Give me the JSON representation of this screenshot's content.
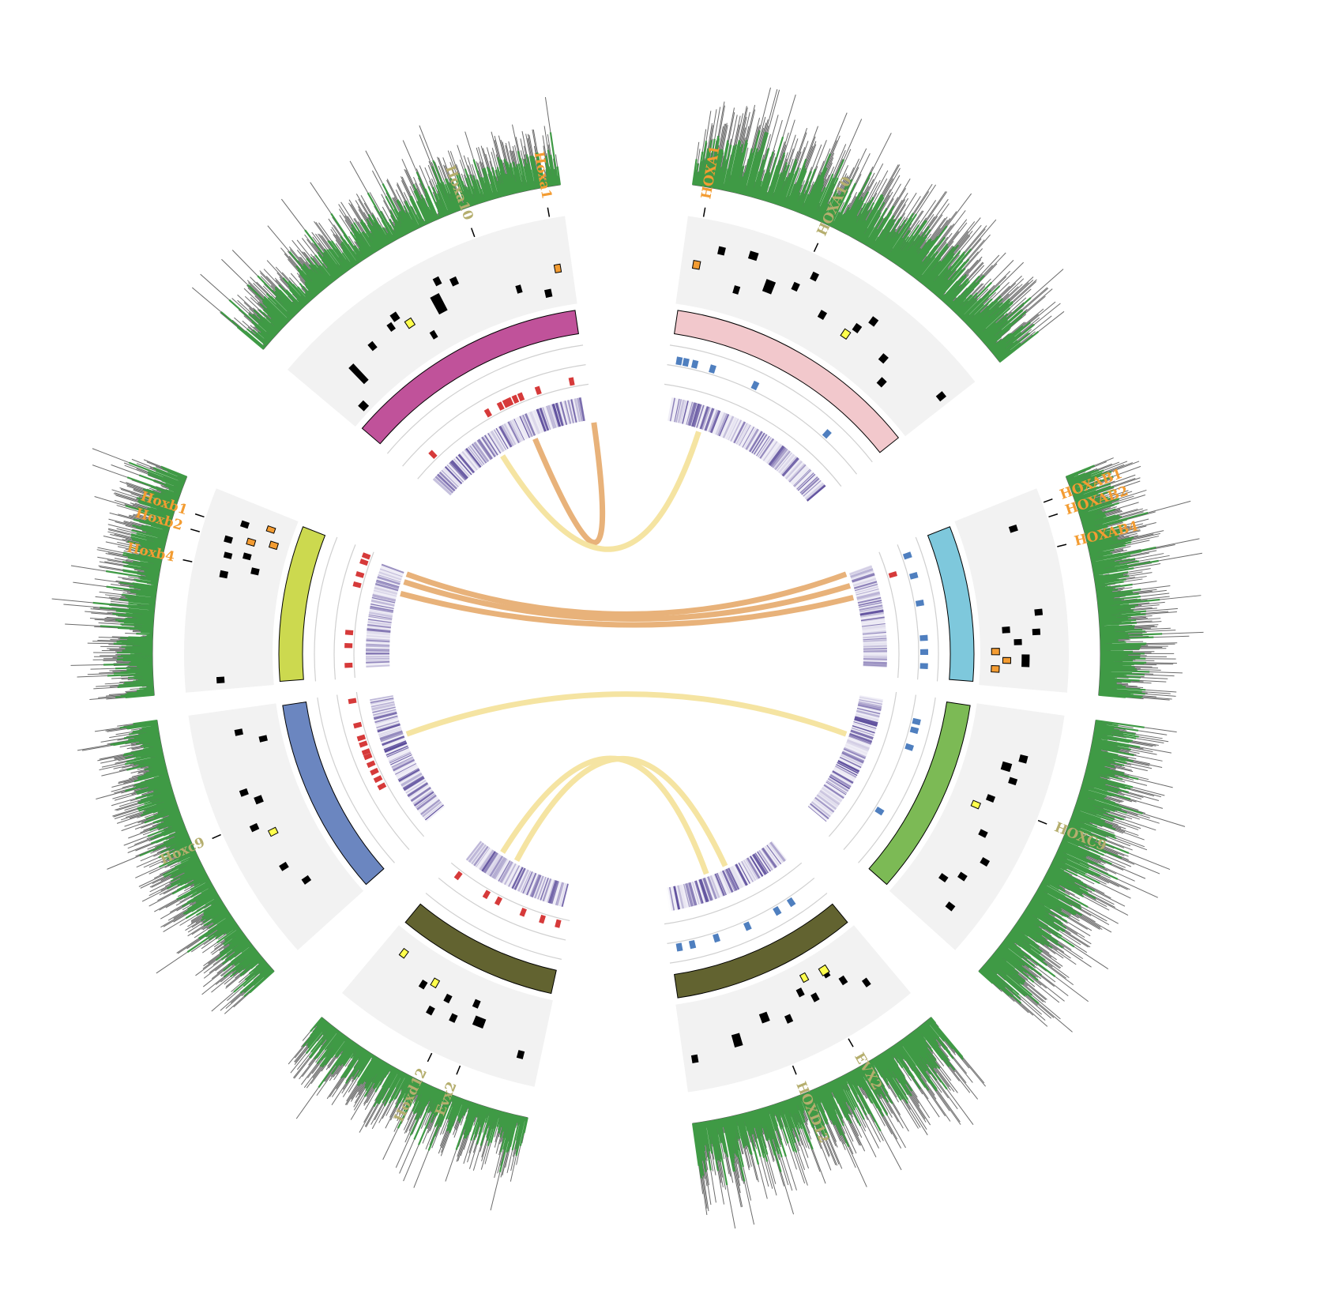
{
  "colors": {
    "track_bg": "#f2f2f2",
    "orange": "#f39c32",
    "olive_text": "#b5ae6e",
    "gene_black": "#000000",
    "yellow_box": "#ffff4d",
    "red_mark": "#d63a3a",
    "blue_mark": "#4f7fbf",
    "purple": "#5a4a9a",
    "green_hist": "#3f9a45",
    "grey_hist": "#6b6b6b",
    "link_orange": "#e8b27a",
    "link_yellow": "#f5e4a2",
    "line_grey": "#d0d0d0"
  },
  "segments": [
    {
      "id": "mouse-hoxa",
      "a0": -50,
      "a1": -8,
      "band": "#c0529a",
      "labels": [
        {
          "text": "Hoxa10",
          "angle": -20,
          "color": "olive"
        },
        {
          "text": "Hoxa1",
          "angle": -10,
          "color": "orange"
        }
      ],
      "genes": [
        [
          0.08,
          0.95,
          0.3,
          0.05
        ],
        [
          0.15,
          0.7,
          0.24,
          0.14
        ],
        [
          0.25,
          0.45,
          0.22,
          0.04
        ],
        [
          0.34,
          0.4,
          0.2,
          0.03
        ],
        [
          0.37,
          0.32,
          0.25,
          0.05
        ],
        [
          0.45,
          0.8,
          0.2,
          0.05
        ],
        [
          0.52,
          0.55,
          0.35,
          0.12
        ],
        [
          0.55,
          0.2,
          0.22,
          0.03
        ],
        [
          0.6,
          0.3,
          0.24,
          0.04
        ],
        [
          0.8,
          0.7,
          0.2,
          0.05
        ],
        [
          0.9,
          0.85,
          0.26,
          0.04
        ]
      ],
      "yellow": [
        [
          0.4,
          0.5,
          0.26,
          0.04
        ]
      ],
      "orangebox": [
        [
          0.95,
          0.55,
          0.22,
          0.02
        ]
      ],
      "redmarks": [
        0.14,
        0.48,
        0.55,
        0.58,
        0.6,
        0.63,
        0.66,
        0.75,
        0.92
      ],
      "purpledensity": 0.55,
      "hist": 0.55,
      "histside": "out"
    },
    {
      "id": "human-hoxa",
      "a0": 8,
      "a1": 52,
      "band": "#f2c8cc",
      "labels": [
        {
          "text": "HOXA1",
          "angle": 10,
          "color": "orange"
        },
        {
          "text": "HOXA10",
          "angle": 25,
          "color": "olive"
        }
      ],
      "genes": [
        [
          0.12,
          0.25,
          0.24,
          0.05
        ],
        [
          0.2,
          0.7,
          0.22,
          0.04
        ],
        [
          0.22,
          0.2,
          0.3,
          0.05
        ],
        [
          0.3,
          0.55,
          0.35,
          0.08
        ],
        [
          0.38,
          0.38,
          0.22,
          0.03
        ],
        [
          0.42,
          0.15,
          0.22,
          0.04
        ],
        [
          0.5,
          0.55,
          0.24,
          0.04
        ],
        [
          0.62,
          0.45,
          0.24,
          0.04
        ],
        [
          0.65,
          0.25,
          0.24,
          0.05
        ],
        [
          0.75,
          0.55,
          0.25,
          0.05
        ],
        [
          0.8,
          0.8,
          0.26,
          0.04
        ],
        [
          0.97,
          0.35,
          0.24,
          0.05
        ]
      ],
      "yellow": [
        [
          0.6,
          0.6,
          0.25,
          0.04
        ]
      ],
      "orangebox": [
        [
          0.05,
          0.5,
          0.25,
          0.04
        ]
      ],
      "bluemarks": [
        0.05,
        0.08,
        0.12,
        0.2,
        0.4,
        0.78
      ],
      "purpledensity": 0.5,
      "hist": 0.8,
      "histside": "out"
    },
    {
      "id": "mouse-hoxb",
      "a0": -95,
      "a1": -68,
      "band": "#ccd94f",
      "labels": [
        {
          "text": "Hoxb1",
          "angle": -72,
          "color": "orange"
        },
        {
          "text": "Hoxb2",
          "angle": -74,
          "color": "orange"
        },
        {
          "text": "Hoxb4",
          "angle": -78,
          "color": "orange"
        }
      ],
      "genes": [
        [
          0.05,
          0.35,
          0.22,
          0.04
        ],
        [
          0.6,
          0.3,
          0.24,
          0.04
        ],
        [
          0.65,
          0.7,
          0.24,
          0.04
        ],
        [
          0.7,
          0.3,
          0.2,
          0.04
        ],
        [
          0.72,
          0.55,
          0.22,
          0.04
        ],
        [
          0.78,
          0.25,
          0.22,
          0.04
        ],
        [
          0.88,
          0.4,
          0.22,
          0.04
        ]
      ],
      "orangebox": [
        [
          0.8,
          0.55,
          0.22,
          0.05
        ],
        [
          0.82,
          0.85,
          0.24,
          0.04
        ],
        [
          0.9,
          0.75,
          0.2,
          0.04
        ]
      ],
      "redmarks": [
        0.1,
        0.25,
        0.35,
        0.72,
        0.8,
        0.9,
        0.95
      ],
      "purpledensity": 0.35,
      "hist": 0.6,
      "histside": "out"
    },
    {
      "id": "human-hoxab",
      "a0": 68,
      "a1": 95,
      "band": "#7ec8dc",
      "labels": [
        {
          "text": "HOXAB1",
          "angle": 70,
          "color": "orange"
        },
        {
          "text": "HOXAB2",
          "angle": 72,
          "color": "orange"
        },
        {
          "text": "HOXAB4",
          "angle": 76,
          "color": "orange"
        }
      ],
      "genes": [
        [
          0.15,
          0.35,
          0.22,
          0.05
        ],
        [
          0.6,
          0.25,
          0.22,
          0.04
        ],
        [
          0.68,
          0.7,
          0.24,
          0.04
        ],
        [
          0.7,
          0.3,
          0.22,
          0.04
        ],
        [
          0.75,
          0.55,
          0.22,
          0.04
        ],
        [
          0.85,
          0.45,
          0.45,
          0.05
        ]
      ],
      "orangebox": [
        [
          0.8,
          0.85,
          0.25,
          0.03
        ],
        [
          0.85,
          0.7,
          0.22,
          0.03
        ],
        [
          0.9,
          0.85,
          0.25,
          0.03
        ]
      ],
      "bluemarks": [
        0.1,
        0.25,
        0.45,
        0.7,
        0.8,
        0.9
      ],
      "redmarks": [
        0.2
      ],
      "purpledensity": 0.35,
      "hist": 0.7,
      "histside": "out"
    },
    {
      "id": "mouse-hoxc",
      "a0": -132,
      "a1": -98,
      "band": "#6b86c0",
      "labels": [
        {
          "text": "Hoxc9",
          "angle": -114,
          "color": "olive"
        }
      ],
      "genes": [
        [
          0.2,
          0.55,
          0.22,
          0.04
        ],
        [
          0.3,
          0.4,
          0.22,
          0.04
        ],
        [
          0.5,
          0.3,
          0.22,
          0.04
        ],
        [
          0.6,
          0.5,
          0.26,
          0.04
        ],
        [
          0.65,
          0.35,
          0.22,
          0.04
        ],
        [
          0.85,
          0.8,
          0.22,
          0.05
        ],
        [
          0.9,
          0.5,
          0.22,
          0.04
        ]
      ],
      "yellow": [
        [
          0.45,
          0.5,
          0.22,
          0.04
        ]
      ],
      "redmarks": [
        0.4,
        0.45,
        0.5,
        0.55,
        0.6,
        0.63,
        0.68,
        0.72,
        0.8,
        0.95
      ],
      "purpledensity": 0.55,
      "hist": 0.6,
      "histside": "out"
    },
    {
      "id": "human-hoxc",
      "a0": 98,
      "a1": 132,
      "band": "#7cba55",
      "labels": [
        {
          "text": "HOXC9",
          "angle": 112,
          "color": "olive"
        }
      ],
      "genes": [
        [
          0.2,
          0.3,
          0.26,
          0.05
        ],
        [
          0.25,
          0.5,
          0.3,
          0.06
        ],
        [
          0.3,
          0.35,
          0.22,
          0.04
        ],
        [
          0.4,
          0.55,
          0.22,
          0.04
        ],
        [
          0.55,
          0.45,
          0.22,
          0.04
        ],
        [
          0.65,
          0.25,
          0.22,
          0.04
        ],
        [
          0.75,
          0.4,
          0.22,
          0.04
        ],
        [
          0.8,
          0.6,
          0.22,
          0.04
        ],
        [
          0.88,
          0.3,
          0.22,
          0.05
        ]
      ],
      "yellow": [
        [
          0.45,
          0.7,
          0.22,
          0.04
        ]
      ],
      "bluemarks": [
        0.15,
        0.2,
        0.3,
        0.7
      ],
      "purpledensity": 0.6,
      "hist": 0.8,
      "histside": "out"
    },
    {
      "id": "mouse-hoxd",
      "a0": -168,
      "a1": -140,
      "band": "#626330",
      "labels": [
        {
          "text": "Evx2",
          "angle": -158,
          "color": "olive"
        },
        {
          "text": "Hoxd12",
          "angle": -154,
          "color": "olive"
        }
      ],
      "genes": [
        [
          0.1,
          0.25,
          0.22,
          0.04
        ],
        [
          0.35,
          0.5,
          0.4,
          0.06
        ],
        [
          0.4,
          0.7,
          0.22,
          0.05
        ],
        [
          0.48,
          0.4,
          0.22,
          0.04
        ],
        [
          0.55,
          0.6,
          0.22,
          0.04
        ],
        [
          0.6,
          0.35,
          0.22,
          0.04
        ],
        [
          0.7,
          0.6,
          0.22,
          0.04
        ]
      ],
      "yellow": [
        [
          0.88,
          0.8,
          0.22,
          0.04
        ],
        [
          0.65,
          0.7,
          0.22,
          0.03
        ]
      ],
      "redmarks": [
        0.08,
        0.2,
        0.35,
        0.55,
        0.65,
        0.9
      ],
      "purpledensity": 0.5,
      "hist": 0.6,
      "histside": "out"
    },
    {
      "id": "human-hoxd",
      "a0": 140,
      "a1": 172,
      "band": "#626330",
      "labels": [
        {
          "text": "EVX2",
          "angle": 150,
          "color": "olive"
        },
        {
          "text": "HOXD12",
          "angle": 158,
          "color": "olive"
        }
      ],
      "genes": [
        [
          0.12,
          0.35,
          0.2,
          0.03
        ],
        [
          0.2,
          0.55,
          0.22,
          0.04
        ],
        [
          0.25,
          0.75,
          0.22,
          0.04
        ],
        [
          0.35,
          0.55,
          0.22,
          0.04
        ],
        [
          0.4,
          0.7,
          0.22,
          0.04
        ],
        [
          0.5,
          0.45,
          0.22,
          0.04
        ],
        [
          0.6,
          0.6,
          0.3,
          0.06
        ],
        [
          0.75,
          0.45,
          0.3,
          0.08
        ],
        [
          0.95,
          0.3,
          0.22,
          0.04
        ]
      ],
      "yellow": [
        [
          0.25,
          0.8,
          0.3,
          0.05
        ],
        [
          0.35,
          0.85,
          0.22,
          0.02
        ]
      ],
      "bluemarks": [
        0.2,
        0.3,
        0.5,
        0.7,
        0.85,
        0.93
      ],
      "purpledensity": 0.55,
      "hist": 0.85,
      "histside": "out"
    }
  ],
  "links": [
    {
      "from": [
        "mouse-hoxa",
        -23
      ],
      "to": [
        "human-hoxa",
        -8
      ],
      "color": "orange",
      "note": ""
    },
    {
      "from": [
        "mouse-hoxa",
        -32
      ],
      "to": [
        "human-hoxa",
        18
      ],
      "color": "yellow"
    },
    {
      "from": [
        "mouse-hoxb",
        -70
      ],
      "to": [
        "human-hoxab",
        70
      ],
      "color": "orange"
    },
    {
      "from": [
        "mouse-hoxb",
        -72
      ],
      "to": [
        "human-hoxab",
        73
      ],
      "color": "orange"
    },
    {
      "from": [
        "mouse-hoxb",
        -75
      ],
      "to": [
        "human-hoxab",
        76
      ],
      "color": "orange"
    },
    {
      "from": [
        "mouse-hoxc",
        -110
      ],
      "to": [
        "human-hoxc",
        110
      ],
      "color": "yellow"
    },
    {
      "from": [
        "mouse-hoxd",
        -152
      ],
      "to": [
        "human-hoxd",
        155
      ],
      "color": "yellow"
    },
    {
      "from": [
        "mouse-hoxd",
        -148
      ],
      "to": [
        "human-hoxd",
        160
      ],
      "color": "yellow"
    }
  ]
}
